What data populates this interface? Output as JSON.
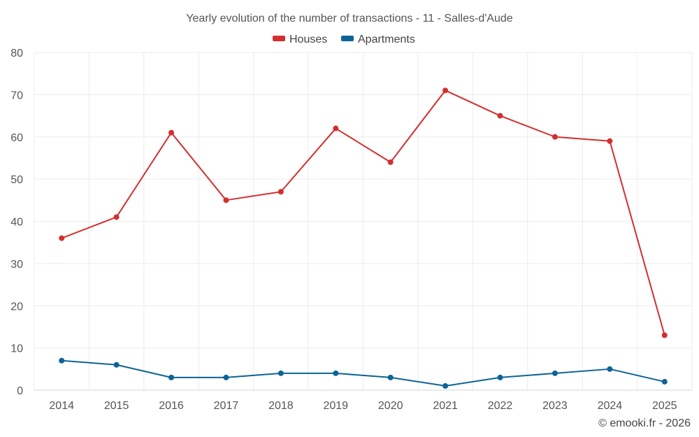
{
  "chart_data": {
    "type": "line",
    "title": "Yearly evolution of the number of transactions - 11 - Salles-d'Aude",
    "xlabel": "",
    "ylabel": "",
    "categories": [
      "2014",
      "2015",
      "2016",
      "2017",
      "2018",
      "2019",
      "2020",
      "2021",
      "2022",
      "2023",
      "2024",
      "2025"
    ],
    "ylim": [
      0,
      80
    ],
    "yticks": [
      0,
      10,
      20,
      30,
      40,
      50,
      60,
      70,
      80
    ],
    "grid": true,
    "legend_position": "top-center",
    "series": [
      {
        "name": "Houses",
        "color": "#d32f2f",
        "values": [
          36,
          41,
          61,
          45,
          47,
          62,
          54,
          71,
          65,
          60,
          59,
          13
        ]
      },
      {
        "name": "Apartments",
        "color": "#0d6496",
        "values": [
          7,
          6,
          3,
          3,
          4,
          4,
          3,
          1,
          3,
          4,
          5,
          2
        ]
      }
    ]
  },
  "credit": "© emooki.fr - 2026"
}
